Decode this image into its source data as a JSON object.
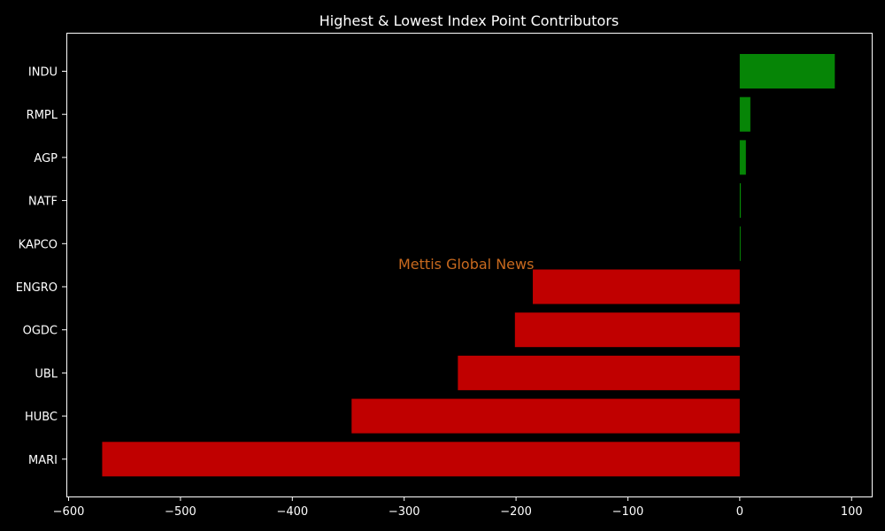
{
  "chart_data": {
    "type": "bar",
    "orientation": "horizontal",
    "title": "Highest & Lowest Index Point Contributors",
    "xlabel": "",
    "ylabel": "",
    "xlim": [
      -602,
      118
    ],
    "x_ticks": [
      -600,
      -500,
      -400,
      -300,
      -200,
      -100,
      0,
      100
    ],
    "grid": false,
    "categories": [
      "INDU",
      "RMPL",
      "AGP",
      "NATF",
      "KAPCO",
      "ENGRO",
      "OGDC",
      "UBL",
      "HUBC",
      "MARI"
    ],
    "values": [
      85,
      9.5,
      5.5,
      1,
      0.8,
      -185,
      -201,
      -252,
      -347,
      -570
    ],
    "colors": {
      "positive": "#068506",
      "negative": "#c00000",
      "background": "#000000",
      "axis": "#ffffff",
      "text": "#ffffff"
    }
  },
  "watermark": {
    "text": "Mettis Global News",
    "color": "#c8691e"
  }
}
